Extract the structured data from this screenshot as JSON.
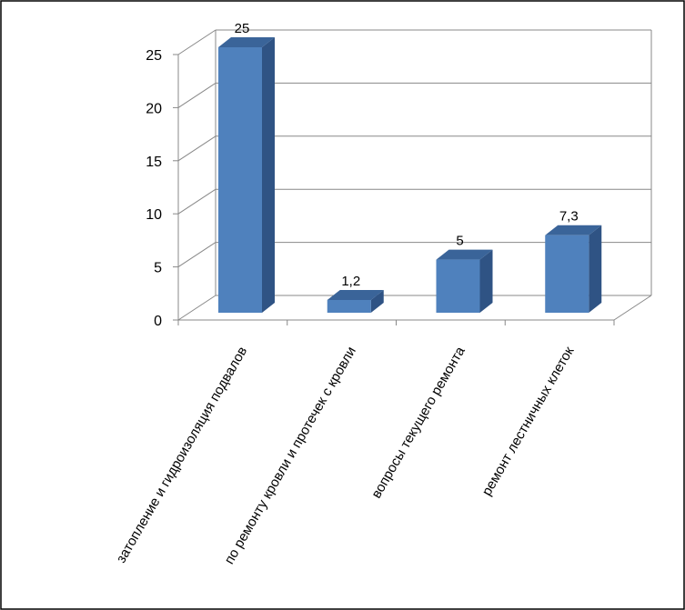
{
  "chart_data": {
    "type": "bar",
    "categories": [
      "затопление и гидроизоляция подвалов",
      "по ремонту кровли и протечек с кровли",
      "вопросы текущего ремонта",
      "ремонт лестничных клеток"
    ],
    "values": [
      25,
      1.2,
      5,
      7.3
    ],
    "data_labels": [
      "25",
      "1,2",
      "5",
      "7,3"
    ],
    "y_ticks": [
      "0",
      "5",
      "10",
      "15",
      "20",
      "25"
    ],
    "ylim": [
      0,
      25
    ],
    "grid": true,
    "legend": "none",
    "colors": {
      "bar_front": "#4F81BD",
      "bar_side": "#2F5384",
      "bar_top": "#3A6499",
      "grid": "#888888",
      "border": "#000000"
    }
  }
}
